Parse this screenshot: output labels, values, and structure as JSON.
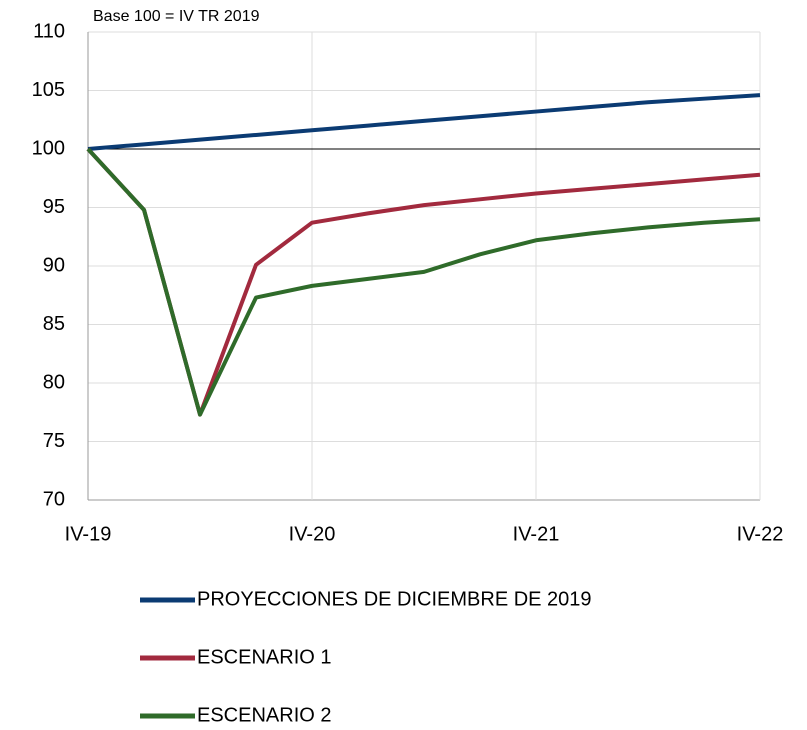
{
  "chart_data": {
    "type": "line",
    "annotation": "Base 100 = IV TR 2019",
    "categories": [
      "IV-19",
      null,
      null,
      null,
      "IV-20",
      null,
      null,
      null,
      "IV-21",
      null,
      null,
      null,
      "IV-22"
    ],
    "series": [
      {
        "name": "PROYECCIONES DE DICIEMBRE DE 2019",
        "color": "#0b3b73",
        "values": [
          100,
          100.4,
          100.8,
          101.2,
          101.6,
          102.0,
          102.4,
          102.8,
          103.2,
          103.6,
          104.0,
          104.3,
          104.6
        ]
      },
      {
        "name": "ESCENARIO 1",
        "color": "#a22a3e",
        "values": [
          100,
          94.8,
          77.3,
          90.1,
          93.7,
          94.5,
          95.2,
          95.7,
          96.2,
          96.6,
          97.0,
          97.4,
          97.8
        ]
      },
      {
        "name": "ESCENARIO 2",
        "color": "#2f6b2a",
        "values": [
          100,
          94.8,
          77.3,
          87.3,
          88.3,
          88.9,
          89.5,
          91.0,
          92.2,
          92.8,
          93.3,
          93.7,
          94.0
        ]
      }
    ],
    "ylim": [
      70,
      110
    ],
    "yticks": [
      70,
      75,
      80,
      85,
      90,
      95,
      100,
      105,
      110
    ],
    "reference_line": 100,
    "grid": true,
    "legend": "bottom"
  }
}
